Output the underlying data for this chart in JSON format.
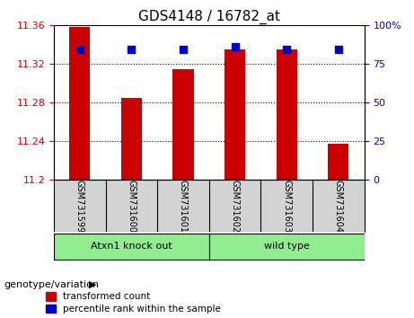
{
  "title": "GDS4148 / 16782_at",
  "samples": [
    "GSM731599",
    "GSM731600",
    "GSM731601",
    "GSM731602",
    "GSM731603",
    "GSM731604"
  ],
  "red_values": [
    11.358,
    11.285,
    11.315,
    11.335,
    11.335,
    11.237
  ],
  "blue_values": [
    11.335,
    11.335,
    11.335,
    11.338,
    11.335,
    11.335
  ],
  "ylim_left": [
    11.2,
    11.36
  ],
  "yticks_left": [
    11.2,
    11.24,
    11.28,
    11.32,
    11.36
  ],
  "yticks_right": [
    0,
    25,
    50,
    75,
    100
  ],
  "ylim_right": [
    0,
    100
  ],
  "group_labels": [
    "Atxn1 knock out",
    "wild type"
  ],
  "group_colors": [
    "#90EE90",
    "#90EE90"
  ],
  "bar_color": "#CC0000",
  "dot_color": "#0000CC",
  "left_tick_color": "#CC0000",
  "right_tick_color": "#0000CC",
  "legend_items": [
    "transformed count",
    "percentile rank within the sample"
  ],
  "background_color": "#ffffff",
  "plot_bg_color": "#ffffff",
  "sample_label_bg": "#d3d3d3",
  "bar_width": 0.4,
  "dot_size": 30,
  "base_value": 11.2
}
